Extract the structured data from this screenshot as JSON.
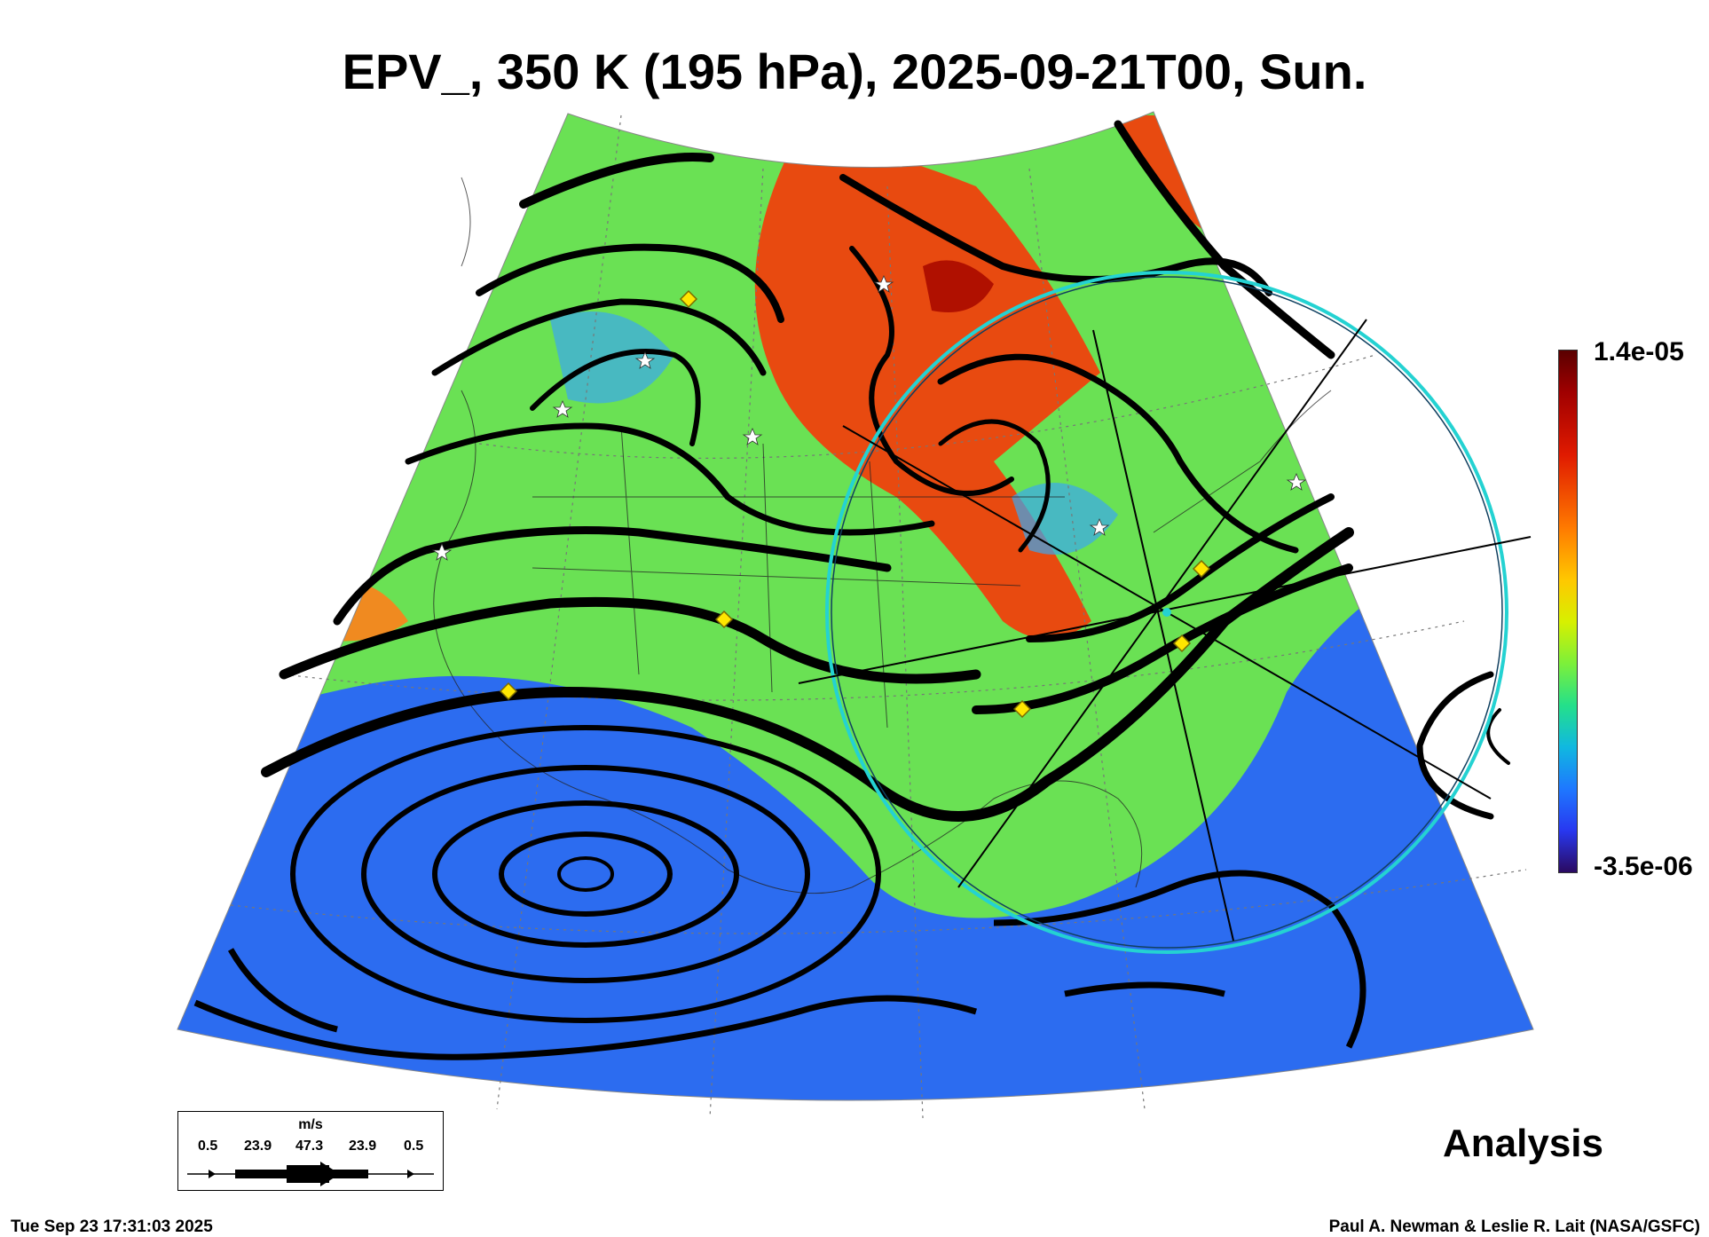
{
  "title": "EPV_, 350 K (195 hPa), 2025-09-21T00, Sun.",
  "colorbar": {
    "max_label": "1.4e-05",
    "min_label": "-3.5e-06",
    "colors": [
      "#5a0000",
      "#e01a00",
      "#ff7a00",
      "#ffc800",
      "#7cf03a",
      "#10b8e0",
      "#1e78ff",
      "#2a0a60"
    ]
  },
  "legend": {
    "unit": "m/s",
    "values": [
      "0.5",
      "23.9",
      "47.3",
      "23.9",
      "0.5"
    ]
  },
  "analysis_label": "Analysis",
  "timestamp": "Tue Sep 23 17:31:03 2025",
  "credit": "Paul A. Newman & Leslie R. Lait (NASA/GSFC)",
  "map": {
    "field_colors": {
      "high": "#e84a10",
      "mid": "#7fe63c",
      "low": "#2c6cf0"
    },
    "marker_colors": {
      "diamond": "#ffe600",
      "star": "#ffffff",
      "circle": "#24d2d2"
    }
  }
}
